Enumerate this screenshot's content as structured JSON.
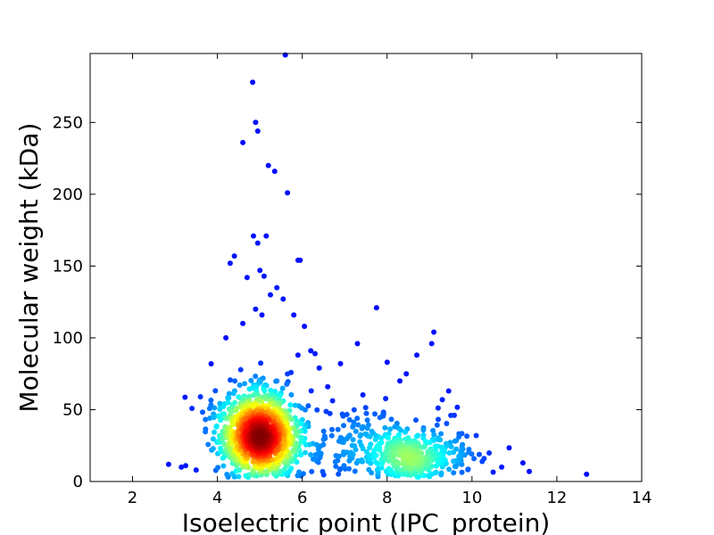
{
  "chart_data": {
    "type": "scatter",
    "title": "",
    "xlabel": "Isoelectric point (IPC_protein)",
    "ylabel": "Molecular weight (kDa)",
    "xlim": [
      1,
      14
    ],
    "ylim": [
      0,
      298
    ],
    "x_ticks": [
      2,
      4,
      6,
      8,
      10,
      12,
      14
    ],
    "y_ticks": [
      0,
      50,
      100,
      150,
      200,
      250
    ],
    "grid": false,
    "legend": "none",
    "colormap": "jet (point density: blue = low, red = high)",
    "colors": {
      "low": "#00008f",
      "mid_low": "#0080ff",
      "mid": "#7fff7f",
      "mid_high": "#ffbf00",
      "high": "#a50000"
    },
    "dense_clusters": [
      {
        "x": 5.0,
        "y": 30,
        "sx": 0.45,
        "sy": 13,
        "n": 900
      },
      {
        "x": 4.9,
        "y": 45,
        "sx": 0.5,
        "sy": 15,
        "n": 250
      },
      {
        "x": 8.6,
        "y": 17,
        "sx": 0.7,
        "sy": 9,
        "n": 320
      },
      {
        "x": 7.4,
        "y": 25,
        "sx": 0.9,
        "sy": 13,
        "n": 180
      }
    ],
    "outliers": [
      [
        4.83,
        278
      ],
      [
        4.9,
        250
      ],
      [
        4.95,
        244
      ],
      [
        4.6,
        236
      ],
      [
        5.2,
        220
      ],
      [
        5.35,
        216
      ],
      [
        5.65,
        201
      ],
      [
        5.6,
        297
      ],
      [
        4.85,
        171
      ],
      [
        5.15,
        171
      ],
      [
        4.95,
        166
      ],
      [
        4.4,
        157
      ],
      [
        4.3,
        152
      ],
      [
        5.9,
        154
      ],
      [
        5.95,
        154
      ],
      [
        5.0,
        147
      ],
      [
        5.1,
        143
      ],
      [
        4.7,
        142
      ],
      [
        5.4,
        135
      ],
      [
        5.55,
        127
      ],
      [
        5.25,
        130
      ],
      [
        5.8,
        116
      ],
      [
        7.75,
        121
      ],
      [
        4.9,
        120
      ],
      [
        5.05,
        116
      ],
      [
        4.6,
        110
      ],
      [
        6.05,
        108
      ],
      [
        9.1,
        104
      ],
      [
        7.3,
        96
      ],
      [
        9.05,
        96
      ],
      [
        6.9,
        82
      ],
      [
        6.3,
        89
      ],
      [
        8.7,
        88
      ],
      [
        8.0,
        83
      ],
      [
        10.1,
        32
      ],
      [
        10.7,
        10
      ],
      [
        11.2,
        13
      ],
      [
        11.35,
        7
      ],
      [
        12.7,
        5
      ],
      [
        2.85,
        12
      ],
      [
        3.15,
        10
      ],
      [
        3.25,
        11
      ],
      [
        3.5,
        8
      ],
      [
        3.6,
        59
      ],
      [
        9.5,
        46
      ],
      [
        9.45,
        63
      ],
      [
        6.4,
        79
      ],
      [
        6.6,
        66
      ],
      [
        8.3,
        70
      ],
      [
        8.45,
        75
      ],
      [
        9.3,
        57
      ],
      [
        6.2,
        91
      ],
      [
        5.9,
        88
      ],
      [
        4.2,
        100
      ]
    ]
  }
}
